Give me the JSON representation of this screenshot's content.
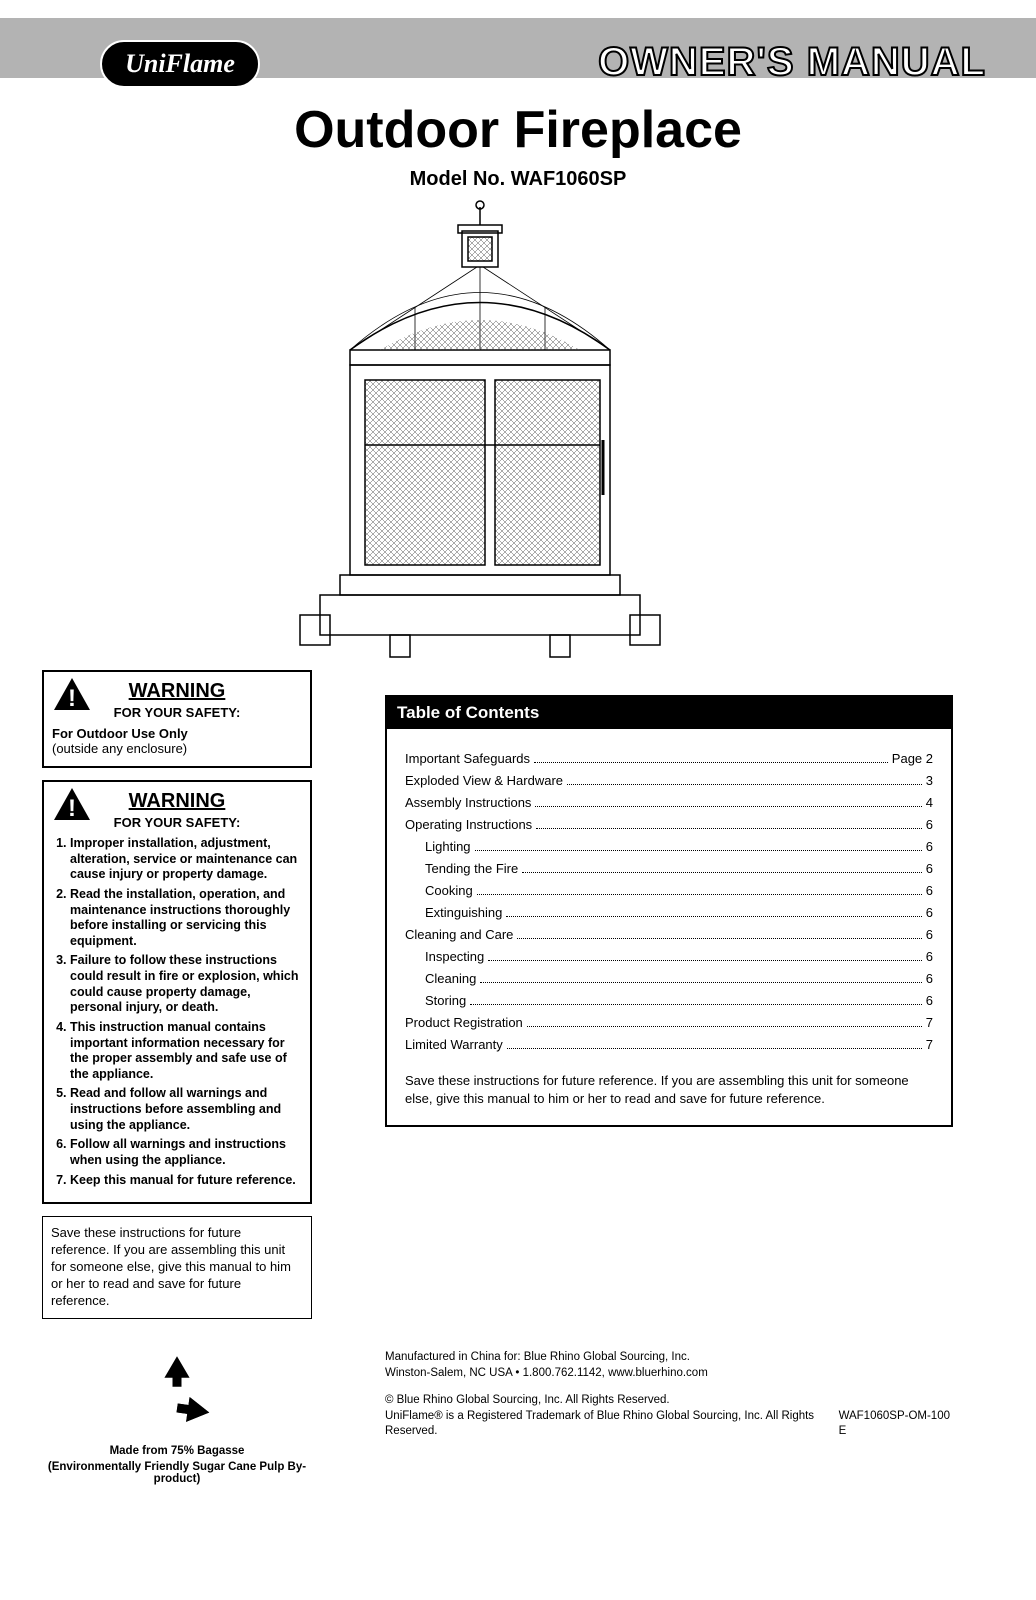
{
  "header": {
    "logo": "UniFlame",
    "title": "OWNER'S MANUAL"
  },
  "title_block": {
    "main": "Outdoor Fireplace",
    "model": "Model No. WAF1060SP"
  },
  "warnings": {
    "w1": {
      "title": "WARNING",
      "sub": "FOR YOUR SAFETY:",
      "line1_bold": "For Outdoor Use Only",
      "line2": "(outside any enclosure)"
    },
    "w2": {
      "title": "WARNING",
      "sub": "FOR YOUR SAFETY:",
      "items": [
        "Improper installation, adjustment, alteration, service or maintenance can cause injury or property damage.",
        "Read the installation, operation, and maintenance instructions thoroughly before installing or servicing this equipment.",
        "Failure to follow these instructions could result in fire or explosion, which could cause property damage, personal injury, or death.",
        "This instruction manual contains important information necessary for the proper assembly and safe use of the appliance.",
        "Read and follow all warnings and instructions before assembling and using the appliance.",
        "Follow all warnings and instructions when using the appliance.",
        "Keep this manual for future reference."
      ]
    },
    "save_note": "Save these instructions for future reference. If you are assembling this unit for someone else, give this manual to him or her to read and save for future reference."
  },
  "recycle": {
    "line1": "Made from 75% Bagasse",
    "line2": "(Environmentally Friendly Sugar Cane Pulp By-product)"
  },
  "toc": {
    "title": "Table of Contents",
    "rows": [
      {
        "label": "Important Safeguards",
        "page": "Page 2",
        "indent": false
      },
      {
        "label": "Exploded View & Hardware",
        "page": "3",
        "indent": false
      },
      {
        "label": "Assembly Instructions",
        "page": "4",
        "indent": false
      },
      {
        "label": "Operating Instructions",
        "page": "6",
        "indent": false
      },
      {
        "label": "Lighting",
        "page": "6",
        "indent": true
      },
      {
        "label": "Tending the Fire",
        "page": "6",
        "indent": true
      },
      {
        "label": "Cooking",
        "page": "6",
        "indent": true
      },
      {
        "label": "Extinguishing",
        "page": "6",
        "indent": true
      },
      {
        "label": "Cleaning and Care",
        "page": "6",
        "indent": false
      },
      {
        "label": "Inspecting",
        "page": "6",
        "indent": true
      },
      {
        "label": "Cleaning",
        "page": "6",
        "indent": true
      },
      {
        "label": "Storing",
        "page": "6",
        "indent": true
      },
      {
        "label": "Product Registration",
        "page": "7",
        "indent": false
      },
      {
        "label": "Limited Warranty",
        "page": "7",
        "indent": false
      }
    ],
    "save_note": "Save these instructions for future reference.  If you are assembling this unit for someone else,  give this manual to him or her to read and save for future reference."
  },
  "footer": {
    "mfg1": "Manufactured in China for: Blue Rhino Global Sourcing, Inc.",
    "mfg2": "Winston-Salem, NC USA • 1.800.762.1142, www.bluerhino.com",
    "copy1": "© Blue Rhino Global Sourcing, Inc. All Rights Reserved.",
    "copy2": "UniFlame® is a Registered Trademark of Blue Rhino Global Sourcing, Inc. All Rights Reserved.",
    "doc_id": "WAF1060SP-OM-100 E"
  },
  "colors": {
    "band": "#b3b3b3",
    "black": "#000000",
    "white": "#ffffff"
  }
}
